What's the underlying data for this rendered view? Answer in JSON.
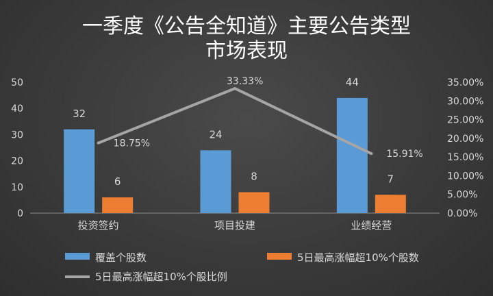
{
  "chart_data": {
    "type": "bar",
    "title": "一季度《公告全知道》主要公告类型",
    "subtitle": "市场表现",
    "categories": [
      "投资签约",
      "项目投建",
      "业绩经营"
    ],
    "series": [
      {
        "name": "覆盖个股数",
        "kind": "bar",
        "axis": "left",
        "color": "#5b9bd5",
        "values": [
          32,
          24,
          44
        ],
        "labels": [
          "32",
          "24",
          "44"
        ]
      },
      {
        "name": "5日最高涨幅超10%个股数",
        "kind": "bar",
        "axis": "left",
        "color": "#ed7d31",
        "values": [
          6,
          8,
          7
        ],
        "labels": [
          "6",
          "8",
          "7"
        ]
      },
      {
        "name": "5日最高涨幅超10%个股比例",
        "kind": "line",
        "axis": "right",
        "color": "#a5a5a5",
        "values": [
          18.75,
          33.33,
          15.91
        ],
        "labels": [
          "18.75%",
          "33.33%",
          "15.91%"
        ]
      }
    ],
    "y_left": {
      "min": 0,
      "max": 50,
      "ticks": [
        "0",
        "10",
        "20",
        "30",
        "40",
        "50"
      ]
    },
    "y_right": {
      "min": 0,
      "max": 35,
      "ticks": [
        "0.00%",
        "5.00%",
        "10.00%",
        "15.00%",
        "20.00%",
        "25.00%",
        "30.00%",
        "35.00%"
      ]
    },
    "grid": false,
    "legend_position": "bottom"
  }
}
